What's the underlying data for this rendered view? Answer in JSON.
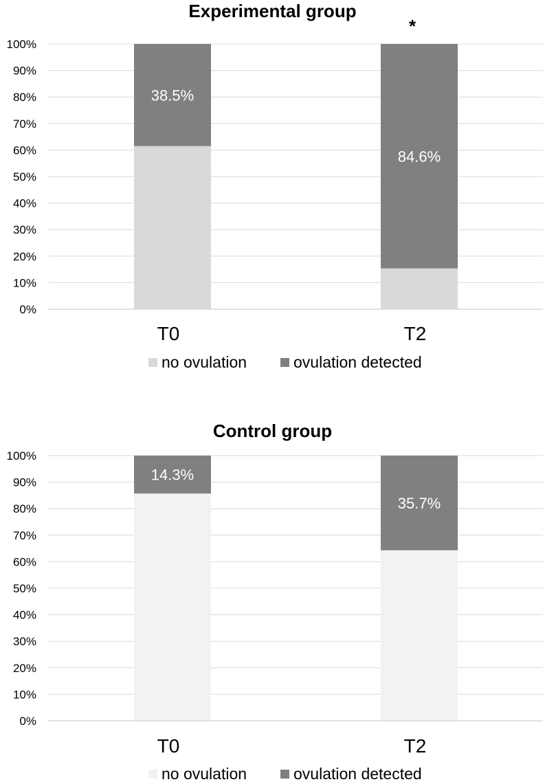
{
  "chart_data": [
    {
      "type": "bar",
      "stacked": true,
      "percent": true,
      "title": "Experimental group",
      "categories": [
        "T0",
        "T2"
      ],
      "series": [
        {
          "name": "no ovulation",
          "values": [
            61.5,
            15.4
          ],
          "color": "#d9d9d9"
        },
        {
          "name": "ovulation detected",
          "values": [
            38.5,
            84.6
          ],
          "color": "#808080"
        }
      ],
      "data_labels": [
        "38.5%",
        "84.6%"
      ],
      "annotations": [
        {
          "category": "T2",
          "text": "*"
        }
      ],
      "yticks": [
        "0%",
        "10%",
        "20%",
        "30%",
        "40%",
        "50%",
        "60%",
        "70%",
        "80%",
        "90%",
        "100%"
      ],
      "ylim": [
        0,
        100
      ],
      "xlabel": "",
      "ylabel": "",
      "grid": true,
      "legend": "bottom"
    },
    {
      "type": "bar",
      "stacked": true,
      "percent": true,
      "title": "Control group",
      "categories": [
        "T0",
        "T2"
      ],
      "series": [
        {
          "name": "no ovulation",
          "values": [
            85.7,
            64.3
          ],
          "color": "#f2f2f2"
        },
        {
          "name": "ovulation detected",
          "values": [
            14.3,
            35.7
          ],
          "color": "#808080"
        }
      ],
      "data_labels": [
        "14.3%",
        "35.7%"
      ],
      "annotations": [],
      "yticks": [
        "0%",
        "10%",
        "20%",
        "30%",
        "40%",
        "50%",
        "60%",
        "70%",
        "80%",
        "90%",
        "100%"
      ],
      "ylim": [
        0,
        100
      ],
      "xlabel": "",
      "ylabel": "",
      "grid": true,
      "legend": "bottom"
    }
  ],
  "colors": {
    "grid": "#d9d9d9",
    "text": "#000000",
    "label_on_bar": "#ffffff"
  }
}
